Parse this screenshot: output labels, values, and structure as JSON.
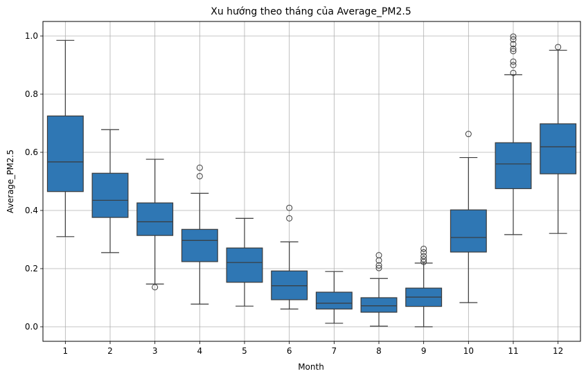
{
  "chart_data": {
    "type": "box",
    "title": "Xu hướng theo tháng của Average_PM2.5",
    "xlabel": "Month",
    "ylabel": "Average_PM2.5",
    "ylim": [
      -0.05,
      1.05
    ],
    "yticks": [
      "0.0",
      "0.2",
      "0.4",
      "0.6",
      "0.8",
      "1.0"
    ],
    "grid": true,
    "box_color": "#2f77b4",
    "line_color": "#3a3a3a",
    "categories": [
      "1",
      "2",
      "3",
      "4",
      "5",
      "6",
      "7",
      "8",
      "9",
      "10",
      "11",
      "12"
    ],
    "boxes": [
      {
        "month": "1",
        "whislo": 0.31,
        "q1": 0.465,
        "med": 0.567,
        "q3": 0.725,
        "whishi": 0.985,
        "fliers": []
      },
      {
        "month": "2",
        "whislo": 0.255,
        "q1": 0.376,
        "med": 0.435,
        "q3": 0.528,
        "whishi": 0.678,
        "fliers": []
      },
      {
        "month": "3",
        "whislo": 0.147,
        "q1": 0.314,
        "med": 0.361,
        "q3": 0.426,
        "whishi": 0.576,
        "fliers": [
          0.136
        ]
      },
      {
        "month": "4",
        "whislo": 0.078,
        "q1": 0.224,
        "med": 0.297,
        "q3": 0.335,
        "whishi": 0.459,
        "fliers": [
          0.518,
          0.547
        ]
      },
      {
        "month": "5",
        "whislo": 0.071,
        "q1": 0.153,
        "med": 0.221,
        "q3": 0.271,
        "whishi": 0.373,
        "fliers": []
      },
      {
        "month": "6",
        "whislo": 0.061,
        "q1": 0.093,
        "med": 0.141,
        "q3": 0.192,
        "whishi": 0.292,
        "fliers": [
          0.373,
          0.409
        ]
      },
      {
        "month": "7",
        "whislo": 0.012,
        "q1": 0.061,
        "med": 0.081,
        "q3": 0.119,
        "whishi": 0.19,
        "fliers": []
      },
      {
        "month": "8",
        "whislo": 0.002,
        "q1": 0.05,
        "med": 0.072,
        "q3": 0.1,
        "whishi": 0.166,
        "fliers": [
          0.202,
          0.211,
          0.228,
          0.246
        ]
      },
      {
        "month": "9",
        "whislo": 0.0,
        "q1": 0.07,
        "med": 0.102,
        "q3": 0.133,
        "whishi": 0.219,
        "fliers": [
          0.223,
          0.232,
          0.243,
          0.256,
          0.268
        ]
      },
      {
        "month": "10",
        "whislo": 0.083,
        "q1": 0.257,
        "med": 0.307,
        "q3": 0.402,
        "whishi": 0.582,
        "fliers": [
          0.663
        ]
      },
      {
        "month": "11",
        "whislo": 0.317,
        "q1": 0.475,
        "med": 0.56,
        "q3": 0.633,
        "whishi": 0.867,
        "fliers": [
          0.873,
          0.9,
          0.912,
          0.948,
          0.956,
          0.972,
          0.988,
          0.998
        ]
      },
      {
        "month": "12",
        "whislo": 0.321,
        "q1": 0.526,
        "med": 0.619,
        "q3": 0.698,
        "whishi": 0.951,
        "fliers": [
          0.962
        ]
      }
    ]
  }
}
